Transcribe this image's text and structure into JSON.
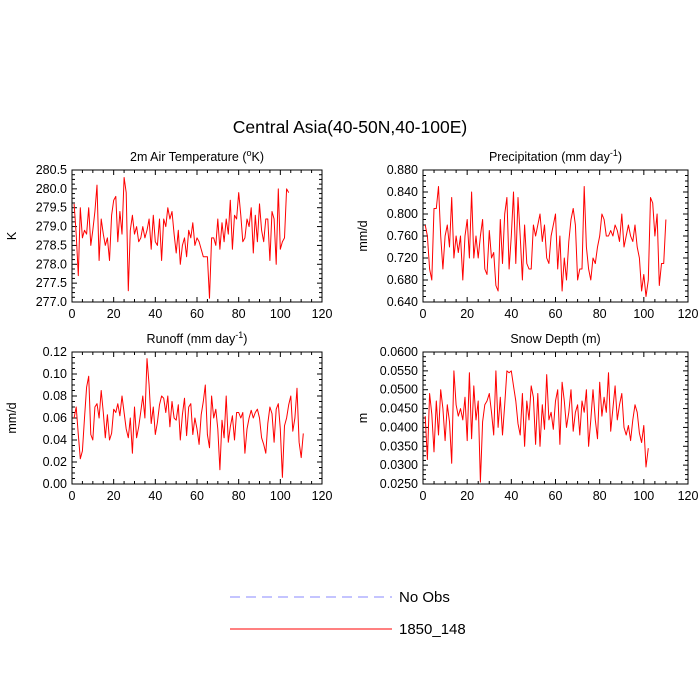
{
  "figure": {
    "title": "Central Asia(40-50N,40-100E)"
  },
  "legend": {
    "items": [
      {
        "label": "No Obs",
        "color": "#8a8aff",
        "dash": true
      },
      {
        "label": "1850_148",
        "color": "#ff0000",
        "dash": false
      }
    ]
  },
  "chart_data": [
    {
      "type": "line",
      "title": "2m Air Temperature (°K)",
      "title_parts": [
        "2m Air Temperature (",
        "o",
        "K)"
      ],
      "ylabel": "K",
      "xlim": [
        0,
        120
      ],
      "xticks": [
        0,
        20,
        40,
        60,
        80,
        100,
        120
      ],
      "ylim": [
        277.0,
        280.5
      ],
      "yticks": [
        "277.0",
        "277.5",
        "278.0",
        "278.5",
        "279.0",
        "279.5",
        "280.0",
        "280.5"
      ],
      "series": [
        {
          "name": "1850_148",
          "color": "#ff0000",
          "values": [
            279.6,
            278.8,
            277.7,
            279.5,
            278.7,
            278.9,
            278.8,
            279.5,
            278.5,
            278.9,
            279.4,
            280.1,
            278.1,
            279.2,
            278.8,
            278.5,
            278.7,
            278.1,
            279.3,
            279.7,
            279.8,
            278.6,
            279.4,
            278.8,
            280.3,
            279.9,
            277.3,
            278.9,
            279.3,
            278.8,
            279.0,
            278.6,
            278.7,
            279.0,
            278.7,
            278.9,
            279.2,
            278.4,
            279.3,
            278.6,
            278.5,
            279.2,
            278.1,
            279.2,
            279.0,
            279.5,
            279.2,
            279.4,
            278.8,
            278.3,
            278.9,
            278.0,
            278.5,
            278.7,
            278.2,
            278.9,
            278.7,
            279.1,
            278.5,
            278.7,
            278.6,
            278.4,
            278.2,
            278.2,
            278.2,
            277.1,
            278.7,
            278.7,
            278.5,
            279.2,
            278.4,
            279.1,
            278.6,
            279.2,
            278.8,
            279.7,
            278.4,
            279.3,
            279.2,
            279.9,
            279.3,
            278.6,
            278.7,
            279.2,
            279.0,
            279.5,
            278.3,
            279.3,
            278.6,
            279.6,
            278.9,
            278.6,
            279.2,
            279.2,
            278.1,
            279.4,
            279.2,
            278.0,
            280.0,
            278.4,
            278.6,
            278.7,
            280.0,
            279.9
          ]
        }
      ]
    },
    {
      "type": "line",
      "title": "Precipitation (mm day-1)",
      "title_parts": [
        "Precipitation (mm day",
        "-1",
        ")"
      ],
      "ylabel": "mm/d",
      "xlim": [
        0,
        120
      ],
      "xticks": [
        0,
        20,
        40,
        60,
        80,
        100,
        120
      ],
      "ylim": [
        0.64,
        0.88
      ],
      "yticks": [
        "0.640",
        "0.680",
        "0.720",
        "0.760",
        "0.800",
        "0.840",
        "0.880"
      ],
      "series": [
        {
          "name": "1850_148",
          "color": "#ff0000",
          "values": [
            0.78,
            0.76,
            0.7,
            0.68,
            0.81,
            0.81,
            0.85,
            0.76,
            0.7,
            0.76,
            0.78,
            0.74,
            0.83,
            0.72,
            0.76,
            0.73,
            0.76,
            0.68,
            0.76,
            0.79,
            0.72,
            0.84,
            0.72,
            0.76,
            0.72,
            0.76,
            0.79,
            0.7,
            0.69,
            0.77,
            0.72,
            0.73,
            0.67,
            0.66,
            0.79,
            0.71,
            0.8,
            0.83,
            0.7,
            0.76,
            0.84,
            0.71,
            0.83,
            0.76,
            0.68,
            0.78,
            0.71,
            0.7,
            0.7,
            0.78,
            0.76,
            0.78,
            0.8,
            0.75,
            0.78,
            0.72,
            0.71,
            0.76,
            0.78,
            0.8,
            0.7,
            0.76,
            0.66,
            0.72,
            0.68,
            0.75,
            0.79,
            0.81,
            0.78,
            0.68,
            0.7,
            0.7,
            0.85,
            0.74,
            0.7,
            0.68,
            0.72,
            0.71,
            0.74,
            0.76,
            0.8,
            0.79,
            0.76,
            0.76,
            0.77,
            0.76,
            0.78,
            0.77,
            0.75,
            0.8,
            0.74,
            0.76,
            0.78,
            0.76,
            0.75,
            0.78,
            0.74,
            0.72,
            0.66,
            0.69,
            0.65,
            0.68,
            0.83,
            0.82,
            0.76,
            0.8,
            0.67,
            0.71,
            0.71,
            0.79
          ]
        }
      ]
    },
    {
      "type": "line",
      "title": "Runoff (mm day-1)",
      "title_parts": [
        "Runoff (mm day",
        "-1",
        ")"
      ],
      "ylabel": "mm/d",
      "xlim": [
        0,
        120
      ],
      "xticks": [
        0,
        20,
        40,
        60,
        80,
        100,
        120
      ],
      "ylim": [
        0.0,
        0.12
      ],
      "yticks": [
        "0.00",
        "0.02",
        "0.04",
        "0.06",
        "0.08",
        "0.10",
        "0.12"
      ],
      "series": [
        {
          "name": "1850_148",
          "color": "#ff0000",
          "values": [
            0.06,
            0.07,
            0.045,
            0.023,
            0.03,
            0.06,
            0.088,
            0.098,
            0.045,
            0.04,
            0.07,
            0.073,
            0.06,
            0.085,
            0.065,
            0.042,
            0.063,
            0.04,
            0.046,
            0.068,
            0.065,
            0.073,
            0.062,
            0.08,
            0.065,
            0.05,
            0.042,
            0.06,
            0.028,
            0.07,
            0.042,
            0.052,
            0.066,
            0.08,
            0.06,
            0.114,
            0.09,
            0.055,
            0.07,
            0.045,
            0.056,
            0.072,
            0.08,
            0.078,
            0.065,
            0.08,
            0.052,
            0.075,
            0.06,
            0.058,
            0.072,
            0.04,
            0.063,
            0.078,
            0.044,
            0.07,
            0.073,
            0.045,
            0.06,
            0.05,
            0.036,
            0.063,
            0.075,
            0.09,
            0.045,
            0.033,
            0.08,
            0.06,
            0.068,
            0.05,
            0.013,
            0.058,
            0.042,
            0.08,
            0.038,
            0.052,
            0.062,
            0.04,
            0.065,
            0.065,
            0.06,
            0.065,
            0.028,
            0.05,
            0.06,
            0.067,
            0.06,
            0.065,
            0.068,
            0.06,
            0.042,
            0.036,
            0.028,
            0.055,
            0.07,
            0.064,
            0.038,
            0.068,
            0.073,
            0.05,
            0.006,
            0.053,
            0.06,
            0.072,
            0.08,
            0.048,
            0.06,
            0.087,
            0.038,
            0.024,
            0.046
          ]
        }
      ]
    },
    {
      "type": "line",
      "title": "Snow Depth (m)",
      "title_parts": [
        "Snow Depth (m)",
        "",
        ""
      ],
      "ylabel": "m",
      "xlim": [
        0,
        120
      ],
      "xticks": [
        0,
        20,
        40,
        60,
        80,
        100,
        120
      ],
      "ylim": [
        0.025,
        0.06
      ],
      "yticks": [
        "0.0250",
        "0.0300",
        "0.0350",
        "0.0400",
        "0.0450",
        "0.0500",
        "0.0550",
        "0.0600"
      ],
      "series": [
        {
          "name": "1850_148",
          "color": "#ff0000",
          "values": [
            0.043,
            0.0315,
            0.049,
            0.0435,
            0.0335,
            0.047,
            0.038,
            0.05,
            0.045,
            0.0365,
            0.046,
            0.0415,
            0.0305,
            0.055,
            0.046,
            0.043,
            0.045,
            0.042,
            0.048,
            0.0365,
            0.0545,
            0.037,
            0.051,
            0.042,
            0.047,
            0.0255,
            0.0415,
            0.046,
            0.047,
            0.049,
            0.044,
            0.038,
            0.055,
            0.04,
            0.048,
            0.038,
            0.046,
            0.055,
            0.0545,
            0.055,
            0.051,
            0.047,
            0.041,
            0.038,
            0.049,
            0.035,
            0.047,
            0.042,
            0.051,
            0.048,
            0.0355,
            0.049,
            0.035,
            0.046,
            0.0395,
            0.054,
            0.042,
            0.044,
            0.0395,
            0.047,
            0.05,
            0.0355,
            0.052,
            0.047,
            0.04,
            0.044,
            0.05,
            0.039,
            0.044,
            0.046,
            0.038,
            0.047,
            0.044,
            0.05,
            0.035,
            0.042,
            0.05,
            0.042,
            0.037,
            0.052,
            0.043,
            0.048,
            0.044,
            0.0545,
            0.039,
            0.045,
            0.051,
            0.042,
            0.046,
            0.049,
            0.04,
            0.038,
            0.0405,
            0.0365,
            0.042,
            0.046,
            0.044,
            0.0385,
            0.036,
            0.0405,
            0.0295,
            0.0345
          ]
        }
      ]
    }
  ]
}
